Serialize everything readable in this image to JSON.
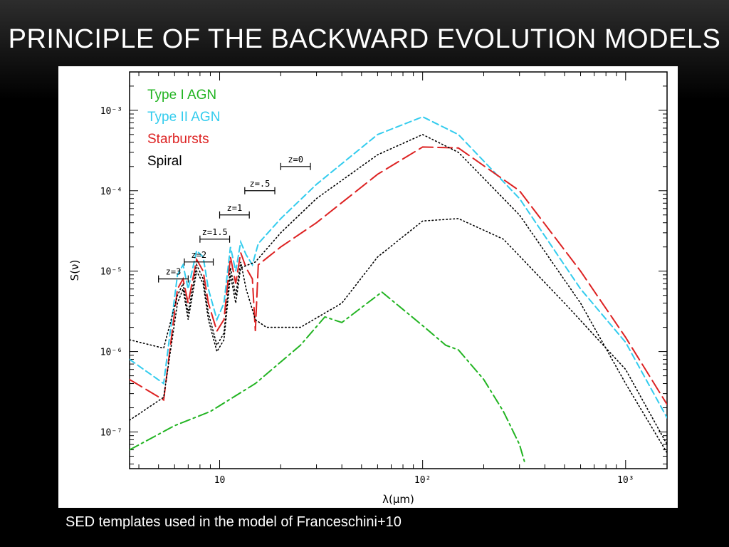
{
  "slide": {
    "title": "PRINCIPLE OF THE BACKWARD EVOLUTION MODELS",
    "caption": "SED templates used in the model of Franceschini+10"
  },
  "chart_data": {
    "type": "line",
    "xlabel": "λ(μm)",
    "ylabel": "S(ν)",
    "xscale": "log",
    "yscale": "log",
    "xlim": [
      3.6,
      1600
    ],
    "ylim": [
      3.5e-08,
      0.003
    ],
    "x_ticks": [
      {
        "value": 10,
        "label": "10"
      },
      {
        "value": 100,
        "label": "10²"
      },
      {
        "value": 1000,
        "label": "10³"
      }
    ],
    "y_ticks": [
      {
        "value": 1e-07,
        "label": "10⁻⁷"
      },
      {
        "value": 1e-06,
        "label": "10⁻⁶"
      },
      {
        "value": 1e-05,
        "label": "10⁻⁵"
      },
      {
        "value": 0.0001,
        "label": "10⁻⁴"
      },
      {
        "value": 0.001,
        "label": "10⁻³"
      }
    ],
    "legend_position": "top-left",
    "series": [
      {
        "name": "Type I AGN",
        "color": "#22b422",
        "dash": "dash-dot",
        "points": [
          [
            3.6,
            6e-08
          ],
          [
            6,
            1.2e-07
          ],
          [
            9,
            1.8e-07
          ],
          [
            15,
            4e-07
          ],
          [
            25,
            1.2e-06
          ],
          [
            33,
            2.7e-06
          ],
          [
            40,
            2.3e-06
          ],
          [
            63,
            5.5e-06
          ],
          [
            100,
            2.1e-06
          ],
          [
            130,
            1.2e-06
          ],
          [
            150,
            1.05e-06
          ],
          [
            200,
            4.5e-07
          ],
          [
            250,
            1.8e-07
          ],
          [
            300,
            7e-08
          ],
          [
            320,
            4e-08
          ]
        ]
      },
      {
        "name": "Type II AGN",
        "color": "#33ccee",
        "dash": "dashed",
        "points": [
          [
            3.6,
            8e-07
          ],
          [
            5.3,
            4e-07
          ],
          [
            6.2,
            9e-06
          ],
          [
            6.6,
            1.2e-05
          ],
          [
            7,
            6e-06
          ],
          [
            7.7,
            1.8e-05
          ],
          [
            8.3,
            1.5e-05
          ],
          [
            8.8,
            6e-06
          ],
          [
            9.7,
            2.5e-06
          ],
          [
            10.5,
            4e-06
          ],
          [
            11.3,
            2e-05
          ],
          [
            12,
            1e-05
          ],
          [
            12.7,
            2.3e-05
          ],
          [
            13.5,
            1.6e-05
          ],
          [
            14.5,
            1.2e-05
          ],
          [
            15.5,
            2.2e-05
          ],
          [
            20,
            4.5e-05
          ],
          [
            30,
            0.00012
          ],
          [
            60,
            0.0005
          ],
          [
            100,
            0.00083
          ],
          [
            150,
            0.0005
          ],
          [
            300,
            8e-05
          ],
          [
            600,
            6e-06
          ],
          [
            1000,
            1.3e-06
          ],
          [
            1600,
            1.5e-07
          ]
        ]
      },
      {
        "name": "Starbursts",
        "color": "#dd2222",
        "dash": "long-dash",
        "points": [
          [
            3.6,
            4.5e-07
          ],
          [
            5.3,
            2.5e-07
          ],
          [
            6.2,
            6e-06
          ],
          [
            6.6,
            8e-06
          ],
          [
            7,
            4e-06
          ],
          [
            7.7,
            1.4e-05
          ],
          [
            8.3,
            1e-05
          ],
          [
            8.8,
            4e-06
          ],
          [
            9.7,
            1.8e-06
          ],
          [
            10.5,
            2.5e-06
          ],
          [
            11.3,
            1.5e-05
          ],
          [
            12,
            7e-06
          ],
          [
            12.7,
            1.7e-05
          ],
          [
            13.5,
            1.1e-05
          ],
          [
            14.5,
            8e-06
          ],
          [
            15,
            1.8e-06
          ],
          [
            15.5,
            1.2e-05
          ],
          [
            20,
            2e-05
          ],
          [
            30,
            4e-05
          ],
          [
            60,
            0.00016
          ],
          [
            100,
            0.00035
          ],
          [
            150,
            0.00034
          ],
          [
            300,
            0.0001
          ],
          [
            600,
            1e-05
          ],
          [
            1000,
            1.5e-06
          ],
          [
            1600,
            2.2e-07
          ]
        ]
      },
      {
        "name": "Spiral",
        "color": "#000000",
        "dash": "dotted",
        "points": [
          [
            3.6,
            1.4e-06
          ],
          [
            5.3,
            1.1e-06
          ],
          [
            6.2,
            5e-06
          ],
          [
            6.6,
            7e-06
          ],
          [
            7,
            3e-06
          ],
          [
            7.7,
            1.2e-05
          ],
          [
            8.3,
            8e-06
          ],
          [
            8.8,
            3e-06
          ],
          [
            9.7,
            1.2e-06
          ],
          [
            10.5,
            1.7e-06
          ],
          [
            11.3,
            1.1e-05
          ],
          [
            12,
            5e-06
          ],
          [
            12.7,
            1.3e-05
          ],
          [
            13.5,
            6e-06
          ],
          [
            15,
            2.5e-06
          ],
          [
            17,
            2e-06
          ],
          [
            25,
            2e-06
          ],
          [
            40,
            4e-06
          ],
          [
            60,
            1.5e-05
          ],
          [
            100,
            4.2e-05
          ],
          [
            150,
            4.5e-05
          ],
          [
            250,
            2.5e-05
          ],
          [
            500,
            4e-06
          ],
          [
            1000,
            6e-07
          ],
          [
            1600,
            7e-08
          ]
        ]
      },
      {
        "name": "",
        "color": "#000000",
        "dash": "dotted",
        "legend": false,
        "points": [
          [
            3.6,
            1.4e-07
          ],
          [
            5.3,
            2.7e-07
          ],
          [
            6.2,
            4e-06
          ],
          [
            6.6,
            6e-06
          ],
          [
            7,
            2.5e-06
          ],
          [
            7.7,
            1e-05
          ],
          [
            8.3,
            7e-06
          ],
          [
            8.8,
            2.5e-06
          ],
          [
            9.7,
            1e-06
          ],
          [
            10.5,
            1.4e-06
          ],
          [
            11.3,
            9e-06
          ],
          [
            12,
            4e-06
          ],
          [
            12.7,
            1.1e-05
          ],
          [
            15,
            1.3e-05
          ],
          [
            20,
            3e-05
          ],
          [
            30,
            8e-05
          ],
          [
            60,
            0.00028
          ],
          [
            100,
            0.0005
          ],
          [
            150,
            0.0003
          ],
          [
            300,
            5e-05
          ],
          [
            600,
            4e-06
          ],
          [
            1000,
            4e-07
          ],
          [
            1600,
            5.5e-08
          ]
        ]
      }
    ],
    "annotations": [
      {
        "label": "z=0",
        "x_range": [
          20,
          28
        ],
        "y": 0.0002
      },
      {
        "label": "z=.5",
        "x_range": [
          13.3,
          18.7
        ],
        "y": 0.0001
      },
      {
        "label": "z=1",
        "x_range": [
          10,
          14
        ],
        "y": 5e-05
      },
      {
        "label": "z=1.5",
        "x_range": [
          8,
          11.2
        ],
        "y": 2.5e-05
      },
      {
        "label": "z=2",
        "x_range": [
          6.7,
          9.3
        ],
        "y": 1.3e-05
      },
      {
        "label": "z=3",
        "x_range": [
          5,
          7
        ],
        "y": 8e-06
      }
    ]
  }
}
